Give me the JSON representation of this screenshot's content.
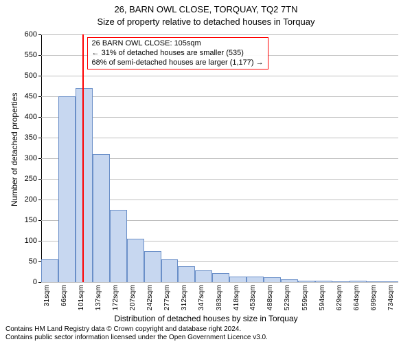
{
  "title_line1": "26, BARN OWL CLOSE, TORQUAY, TQ2 7TN",
  "title_line2": "Size of property relative to detached houses in Torquay",
  "y_axis_label": "Number of detached properties",
  "x_axis_label": "Distribution of detached houses by size in Torquay",
  "footer_line1": "Contains HM Land Registry data © Crown copyright and database right 2024.",
  "footer_line2": "Contains public sector information licensed under the Open Government Licence v3.0.",
  "chart": {
    "type": "histogram",
    "background_color": "#ffffff",
    "grid_color": "#bfbfbf",
    "axis_color": "#000000",
    "bar_fill": "#c7d7f0",
    "bar_stroke": "#6a8fc8",
    "marker_color": "#ff0000",
    "marker_x": 105,
    "anno_border": "#ff0000",
    "anno_line1": "26 BARN OWL CLOSE: 105sqm",
    "anno_line2": "← 31% of detached houses are smaller (535)",
    "anno_line3": "68% of semi-detached houses are larger (1,177) →",
    "x_min": 20,
    "x_max": 750,
    "y_min": 0,
    "y_max": 600,
    "y_ticks": [
      0,
      50,
      100,
      150,
      200,
      250,
      300,
      350,
      400,
      450,
      500,
      550,
      600
    ],
    "x_tick_values": [
      31,
      66,
      101,
      137,
      172,
      207,
      242,
      277,
      312,
      347,
      383,
      418,
      453,
      488,
      523,
      559,
      594,
      629,
      664,
      699,
      734
    ],
    "x_tick_labels": [
      "31sqm",
      "66sqm",
      "101sqm",
      "137sqm",
      "172sqm",
      "207sqm",
      "242sqm",
      "277sqm",
      "312sqm",
      "347sqm",
      "383sqm",
      "418sqm",
      "453sqm",
      "488sqm",
      "523sqm",
      "559sqm",
      "594sqm",
      "629sqm",
      "664sqm",
      "699sqm",
      "734sqm"
    ],
    "bars": [
      {
        "x0": 20,
        "x1": 55,
        "y": 55
      },
      {
        "x0": 55,
        "x1": 90,
        "y": 450
      },
      {
        "x0": 90,
        "x1": 125,
        "y": 470
      },
      {
        "x0": 125,
        "x1": 160,
        "y": 310
      },
      {
        "x0": 160,
        "x1": 195,
        "y": 175
      },
      {
        "x0": 195,
        "x1": 230,
        "y": 105
      },
      {
        "x0": 230,
        "x1": 265,
        "y": 75
      },
      {
        "x0": 265,
        "x1": 300,
        "y": 55
      },
      {
        "x0": 300,
        "x1": 335,
        "y": 38
      },
      {
        "x0": 335,
        "x1": 370,
        "y": 28
      },
      {
        "x0": 370,
        "x1": 405,
        "y": 22
      },
      {
        "x0": 405,
        "x1": 440,
        "y": 14
      },
      {
        "x0": 440,
        "x1": 475,
        "y": 14
      },
      {
        "x0": 475,
        "x1": 510,
        "y": 12
      },
      {
        "x0": 510,
        "x1": 545,
        "y": 7
      },
      {
        "x0": 545,
        "x1": 580,
        "y": 3
      },
      {
        "x0": 580,
        "x1": 615,
        "y": 3
      },
      {
        "x0": 615,
        "x1": 650,
        "y": 2
      },
      {
        "x0": 650,
        "x1": 685,
        "y": 3
      },
      {
        "x0": 685,
        "x1": 720,
        "y": 1
      },
      {
        "x0": 720,
        "x1": 750,
        "y": 2
      }
    ],
    "label_fontsize_pt": 12,
    "tick_fontsize_pt": 11,
    "title_fontsize_pt": 13
  }
}
